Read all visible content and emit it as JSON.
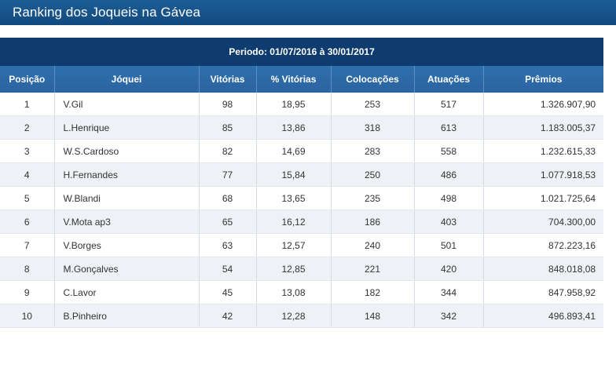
{
  "header": {
    "title": "Ranking dos Joqueis na Gávea"
  },
  "table": {
    "period": "Periodo: 01/07/2016 à 30/01/2017",
    "columns": [
      "Posição",
      "Jóquei",
      "Vitórias",
      "% Vitórias",
      "Colocações",
      "Atuações",
      "Prêmios"
    ],
    "rows": [
      [
        "1",
        "V.Gil",
        "98",
        "18,95",
        "253",
        "517",
        "1.326.907,90"
      ],
      [
        "2",
        "L.Henrique",
        "85",
        "13,86",
        "318",
        "613",
        "1.183.005,37"
      ],
      [
        "3",
        "W.S.Cardoso",
        "82",
        "14,69",
        "283",
        "558",
        "1.232.615,33"
      ],
      [
        "4",
        "H.Fernandes",
        "77",
        "15,84",
        "250",
        "486",
        "1.077.918,53"
      ],
      [
        "5",
        "W.Blandi",
        "68",
        "13,65",
        "235",
        "498",
        "1.021.725,64"
      ],
      [
        "6",
        "V.Mota ap3",
        "65",
        "16,12",
        "186",
        "403",
        "704.300,00"
      ],
      [
        "7",
        "V.Borges",
        "63",
        "12,57",
        "240",
        "501",
        "872.223,16"
      ],
      [
        "8",
        "M.Gonçalves",
        "54",
        "12,85",
        "221",
        "420",
        "848.018,08"
      ],
      [
        "9",
        "C.Lavor",
        "45",
        "13,08",
        "182",
        "344",
        "847.958,92"
      ],
      [
        "10",
        "B.Pinheiro",
        "42",
        "12,28",
        "148",
        "342",
        "496.893,41"
      ]
    ]
  }
}
